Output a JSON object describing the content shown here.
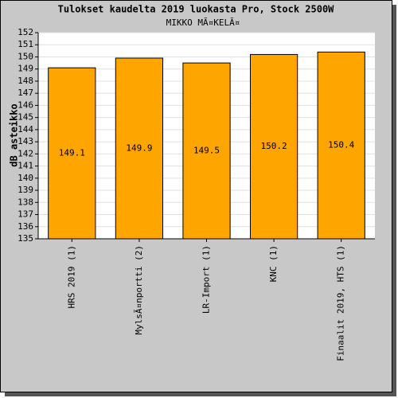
{
  "chart_data": {
    "type": "bar",
    "title": "Tulokset kaudelta 2019 luokasta Pro, Stock 2500W",
    "subtitle": "MIKKO MÃ¤KELÃ¤",
    "y_label": "dB asteikko",
    "categories": [
      "HRS 2019 (1)",
      "MylsÃ¤nportti (2)",
      "LR-Import (1)",
      "KNC (1)",
      "Finaalit 2019, HTS (1)"
    ],
    "values": [
      149.1,
      149.9,
      149.5,
      150.2,
      150.4
    ],
    "color": "#ffa500",
    "ylim": [
      135,
      152
    ],
    "yticks": [
      135,
      136,
      137,
      138,
      139,
      140,
      141,
      142,
      143,
      144,
      145,
      146,
      147,
      148,
      149,
      150,
      151,
      152
    ],
    "grid": true
  }
}
